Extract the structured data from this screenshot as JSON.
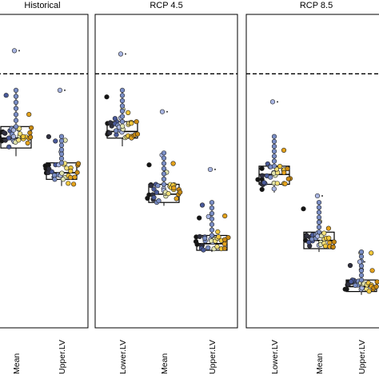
{
  "chart_data": {
    "type": "box",
    "reference_line": "dashed",
    "legend": "none",
    "grid": false,
    "colors": {
      "frame": "#000000",
      "dashed_line": "#000000",
      "box": "#000000",
      "points": [
        "#151515",
        "#303040",
        "#4a5a9a",
        "#7a8ec6",
        "#a9b6e3",
        "#e0e4b0",
        "#f2e07a",
        "#f0c63a",
        "#e4a21b",
        "#c98a12"
      ]
    },
    "panels": [
      {
        "title": "Historical",
        "categories": [
          "Mean",
          "Upper.LV"
        ],
        "boxes": [
          {
            "category": "Mean",
            "min": 0.52,
            "q1": 0.545,
            "median": 0.575,
            "q3": 0.61,
            "max": 0.72,
            "outlier": 0.84,
            "above_line": 0.705
          },
          {
            "category": "Upper.LV",
            "min": 0.43,
            "q1": 0.45,
            "median": 0.47,
            "q3": 0.5,
            "max": 0.58,
            "outlier": 0.72
          }
        ]
      },
      {
        "title": "RCP 4.5",
        "categories": [
          "Lower.LV",
          "Mean",
          "Upper.LV"
        ],
        "boxes": [
          {
            "category": "Lower.LV",
            "min": 0.55,
            "q1": 0.575,
            "median": 0.595,
            "q3": 0.625,
            "max": 0.72,
            "outlier": 0.83
          },
          {
            "category": "Mean",
            "min": 0.37,
            "q1": 0.38,
            "median": 0.405,
            "q3": 0.435,
            "max": 0.53,
            "outlier": 0.655
          },
          {
            "category": "Upper.LV",
            "min": 0.23,
            "q1": 0.235,
            "median": 0.255,
            "q3": 0.28,
            "max": 0.38,
            "outlier": 0.48
          }
        ]
      },
      {
        "title": "RCP 8.5",
        "categories": [
          "Lower.LV",
          "Mean",
          "Upper.LV"
        ],
        "boxes": [
          {
            "category": "Lower.LV",
            "min": 0.41,
            "q1": 0.435,
            "median": 0.465,
            "q3": 0.49,
            "max": 0.58,
            "outlier": 0.685
          },
          {
            "category": "Mean",
            "min": 0.23,
            "q1": 0.24,
            "median": 0.265,
            "q3": 0.29,
            "max": 0.38,
            "outlier": 0.4
          },
          {
            "category": "Upper.LV",
            "min": 0.1,
            "q1": 0.11,
            "median": 0.125,
            "q3": 0.145,
            "max": 0.23,
            "outlier": 0.2
          }
        ]
      }
    ]
  }
}
